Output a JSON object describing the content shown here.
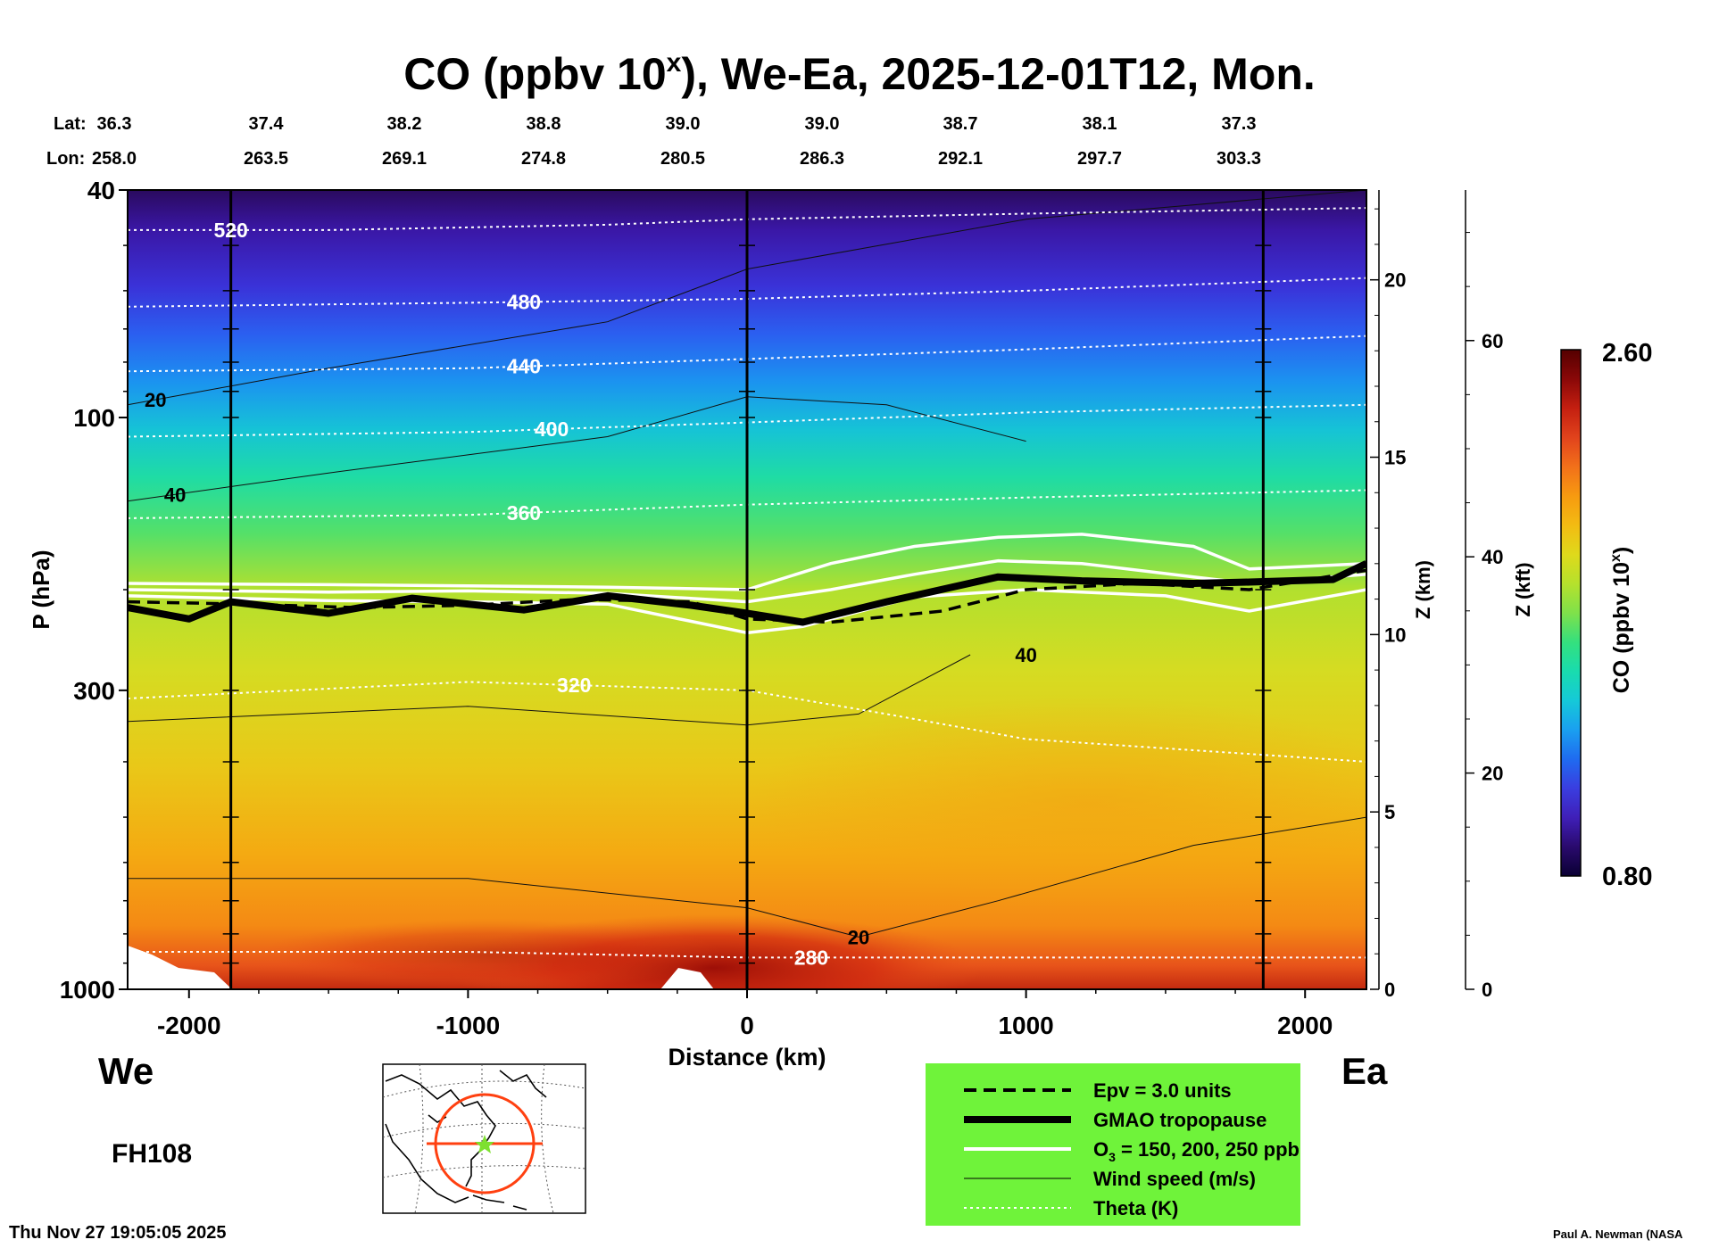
{
  "title": {
    "prefix": "CO (ppbv 10",
    "sup": "x",
    "suffix": "), We-Ea, 2025-12-01T12, Mon."
  },
  "lat_label": "Lat:",
  "lon_label": "Lon:",
  "lat_values": [
    "36.3",
    "37.4",
    "38.2",
    "38.8",
    "39.0",
    "39.0",
    "38.7",
    "38.1",
    "37.3"
  ],
  "lon_values": [
    "258.0",
    "263.5",
    "269.1",
    "274.8",
    "280.5",
    "286.3",
    "292.1",
    "297.7",
    "303.3"
  ],
  "direction_left": "We",
  "direction_right": "Ea",
  "forecast_hour": "FH108",
  "timestamp": "Thu Nov 27 19:05:05 2025",
  "credit": "Paul A. Newman (NASA",
  "colorbar": {
    "label_prefix": "CO (ppbv 10",
    "label_sup": "x",
    "label_suffix": ")",
    "max_label": "2.60",
    "min_label": "0.80",
    "colors": [
      "#0a0033",
      "#2a0a6e",
      "#3f1fb8",
      "#3a3ee0",
      "#1f6bf0",
      "#1aa0f0",
      "#15c9d8",
      "#19dcae",
      "#34e07e",
      "#7fe14a",
      "#b6e12c",
      "#dfd91b",
      "#f3bb12",
      "#f79a10",
      "#f2701a",
      "#e1431c",
      "#c41f10",
      "#8a0808",
      "#550000"
    ]
  },
  "legend": {
    "background": "#6ff33a",
    "items": [
      {
        "label": "Epv = 3.0 units",
        "style": "dashed"
      },
      {
        "label": "GMAO tropopause",
        "style": "thick"
      },
      {
        "label_prefix": "O",
        "label_sub": "3",
        "label_suffix": " = 150, 200, 250 ppb",
        "style": "white"
      },
      {
        "label": "Wind speed (m/s)",
        "style": "thin"
      },
      {
        "label": "Theta (K)",
        "style": "dotted"
      }
    ]
  },
  "chart_data": {
    "type": "heatmap",
    "title": "CO (ppbv 10^x), We-Ea, 2025-12-01T12, Mon.",
    "xlabel": "Distance (km)",
    "ylabel": "P (hPa)",
    "z_km_label": "Z (km)",
    "z_kft_label": "Z (kft)",
    "colorbar_label": "CO (ppbv 10^x)",
    "color_range": [
      0.8,
      2.6
    ],
    "xlim": [
      -2220,
      2220
    ],
    "ylim": [
      1000,
      40
    ],
    "y_scale": "log",
    "x_ticks": [
      -2000,
      -1000,
      0,
      1000,
      2000
    ],
    "y_ticks": [
      40,
      100,
      300,
      1000
    ],
    "z_km_ticks": [
      0,
      5,
      10,
      15,
      20
    ],
    "z_kft_ticks": [
      0,
      20,
      40,
      60
    ],
    "vertical_markers_km": [
      -1850,
      0,
      1850
    ],
    "theta_contours": [
      {
        "label": "520",
        "label_x": -1850,
        "points": [
          [
            -2220,
            47
          ],
          [
            -1500,
            47
          ],
          [
            -500,
            46
          ],
          [
            0,
            45
          ],
          [
            1000,
            44
          ],
          [
            2220,
            43
          ]
        ]
      },
      {
        "label": "480",
        "label_x": -800,
        "points": [
          [
            -2220,
            64
          ],
          [
            -1000,
            63
          ],
          [
            0,
            62
          ],
          [
            1000,
            60
          ],
          [
            2220,
            57
          ]
        ]
      },
      {
        "label": "440",
        "label_x": -800,
        "points": [
          [
            -2220,
            83
          ],
          [
            -1000,
            82
          ],
          [
            0,
            79
          ],
          [
            1000,
            76
          ],
          [
            2220,
            72
          ]
        ]
      },
      {
        "label": "400",
        "label_x": -700,
        "points": [
          [
            -2220,
            108
          ],
          [
            -1000,
            106
          ],
          [
            0,
            102
          ],
          [
            1000,
            98
          ],
          [
            2220,
            95
          ]
        ]
      },
      {
        "label": "360",
        "label_x": -800,
        "points": [
          [
            -2220,
            150
          ],
          [
            -1000,
            148
          ],
          [
            0,
            142
          ],
          [
            1000,
            138
          ],
          [
            2220,
            134
          ]
        ]
      },
      {
        "label": "320",
        "label_x": -620,
        "points": [
          [
            -2220,
            310
          ],
          [
            -1000,
            290
          ],
          [
            0,
            300
          ],
          [
            500,
            330
          ],
          [
            1000,
            365
          ],
          [
            2220,
            400
          ]
        ]
      },
      {
        "label": "280",
        "label_x": 230,
        "points": [
          [
            -2220,
            860
          ],
          [
            -1000,
            860
          ],
          [
            0,
            880
          ],
          [
            1000,
            880
          ],
          [
            2220,
            880
          ]
        ]
      }
    ],
    "wind_contours": [
      {
        "label": "20",
        "label_x": -2120,
        "points": [
          [
            -2220,
            95
          ],
          [
            -1500,
            82
          ],
          [
            -500,
            68
          ],
          [
            0,
            55
          ],
          [
            1000,
            45
          ],
          [
            2220,
            40
          ]
        ]
      },
      {
        "label": "40",
        "label_x": -2050,
        "points": [
          [
            -2220,
            140
          ],
          [
            -1500,
            125
          ],
          [
            -500,
            108
          ],
          [
            0,
            92
          ],
          [
            500,
            95
          ],
          [
            1000,
            110
          ]
        ]
      },
      {
        "label": "40",
        "label_x": 1000,
        "points": [
          [
            -2220,
            340
          ],
          [
            -1000,
            320
          ],
          [
            0,
            345
          ],
          [
            400,
            330
          ],
          [
            800,
            260
          ]
        ]
      },
      {
        "label": "20",
        "label_x": 400,
        "points": [
          [
            -2220,
            640
          ],
          [
            -1000,
            640
          ],
          [
            0,
            720
          ],
          [
            400,
            810
          ],
          [
            900,
            700
          ],
          [
            1600,
            560
          ],
          [
            2220,
            500
          ]
        ]
      }
    ],
    "tropopause_gmao": [
      [
        -2220,
        215
      ],
      [
        -2000,
        225
      ],
      [
        -1850,
        210
      ],
      [
        -1500,
        220
      ],
      [
        -1200,
        207
      ],
      [
        -800,
        217
      ],
      [
        -500,
        205
      ],
      [
        -200,
        213
      ],
      [
        0,
        220
      ],
      [
        200,
        228
      ],
      [
        500,
        210
      ],
      [
        900,
        190
      ],
      [
        1200,
        193
      ],
      [
        1600,
        195
      ],
      [
        1800,
        194
      ],
      [
        2100,
        192
      ],
      [
        2220,
        180
      ]
    ],
    "epv_3_units": [
      [
        -2220,
        210
      ],
      [
        -1800,
        212
      ],
      [
        -1400,
        215
      ],
      [
        -1000,
        213
      ],
      [
        -600,
        208
      ],
      [
        -200,
        210
      ],
      [
        0,
        225
      ],
      [
        300,
        228
      ],
      [
        700,
        218
      ],
      [
        1000,
        200
      ],
      [
        1400,
        195
      ],
      [
        1800,
        200
      ],
      [
        2220,
        185
      ]
    ],
    "o3_150_ppb": [
      [
        -2220,
        195
      ],
      [
        -1500,
        196
      ],
      [
        -1000,
        197
      ],
      [
        -500,
        198
      ],
      [
        0,
        200
      ],
      [
        300,
        180
      ],
      [
        600,
        168
      ],
      [
        900,
        162
      ],
      [
        1200,
        160
      ],
      [
        1600,
        168
      ],
      [
        1800,
        184
      ],
      [
        2220,
        180
      ]
    ],
    "o3_200_ppb": [
      [
        -2220,
        200
      ],
      [
        -1500,
        202
      ],
      [
        -1000,
        201
      ],
      [
        -500,
        203
      ],
      [
        0,
        210
      ],
      [
        300,
        200
      ],
      [
        600,
        188
      ],
      [
        900,
        178
      ],
      [
        1200,
        180
      ],
      [
        1600,
        190
      ],
      [
        1800,
        195
      ],
      [
        2220,
        188
      ]
    ],
    "o3_250_ppb": [
      [
        -2220,
        205
      ],
      [
        -1500,
        209
      ],
      [
        -1000,
        210
      ],
      [
        -500,
        212
      ],
      [
        0,
        238
      ],
      [
        200,
        232
      ],
      [
        600,
        206
      ],
      [
        1000,
        200
      ],
      [
        1500,
        205
      ],
      [
        1800,
        218
      ],
      [
        2220,
        200
      ]
    ]
  }
}
